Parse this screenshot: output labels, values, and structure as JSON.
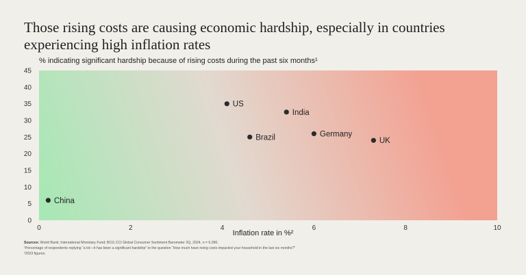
{
  "title": "Those rising costs are causing economic hardship, especially in countries experiencing high inflation rates",
  "subtitle": "% indicating significant hardship because of rising costs during the past six months¹",
  "colors": {
    "green": "#a6e8b4",
    "neutral": "#e2d9d0",
    "red": "#f3a191",
    "point": "#2b2b2b"
  },
  "chart_data": {
    "type": "scatter",
    "xlabel": "Inflation rate in %²",
    "ylabel": "% indicating significant hardship because of rising costs during the past six months¹",
    "xlim": [
      0,
      10
    ],
    "ylim": [
      0,
      45
    ],
    "xticks": [
      0,
      2,
      4,
      6,
      8,
      10
    ],
    "yticks": [
      0,
      5,
      10,
      15,
      20,
      25,
      30,
      35,
      40,
      45
    ],
    "grid": false,
    "points": [
      {
        "label": "US",
        "x": 4.1,
        "y": 35
      },
      {
        "label": "India",
        "x": 5.4,
        "y": 32.5
      },
      {
        "label": "Germany",
        "x": 6.0,
        "y": 26
      },
      {
        "label": "Brazil",
        "x": 4.6,
        "y": 25
      },
      {
        "label": "UK",
        "x": 7.3,
        "y": 24
      },
      {
        "label": "China",
        "x": 0.2,
        "y": 6
      }
    ]
  },
  "sources": {
    "label": "Sources:",
    "text": "World Bank; International Monetary Fund; BCG CCI Global Consumer Sentiment Barometer 2Q, 2024, n = 6,090.",
    "note1": "¹Percentage of respondents replying “a lot—it has been a significant hardship” to the question “How much have rising costs impacted your household in the last six months?”",
    "note2": "²2023 figures."
  }
}
